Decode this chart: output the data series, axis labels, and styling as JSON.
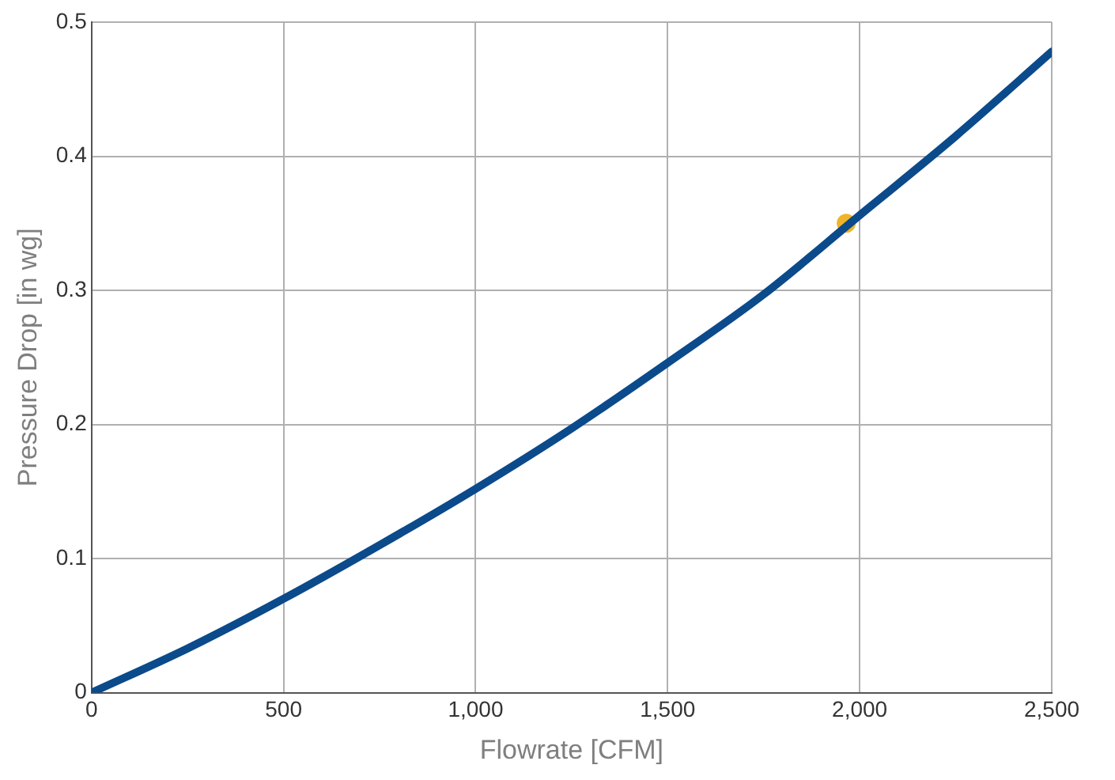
{
  "chart_data": {
    "type": "line",
    "xlabel": "Flowrate [CFM]",
    "ylabel": "Pressure Drop [in wg]",
    "xlim": [
      0,
      2500
    ],
    "xticks": [
      0,
      500,
      {
        "value": 1000,
        "label": "1,000"
      },
      {
        "value": 1500,
        "label": "1,500"
      },
      {
        "value": 2000,
        "label": "2,000"
      },
      {
        "value": 2500,
        "label": "2,500"
      }
    ],
    "ylim": [
      0,
      0.5
    ],
    "yticks": [
      0,
      0.1,
      0.2,
      0.3,
      0.4,
      0.5
    ],
    "grid": true,
    "legend": false,
    "series": [
      {
        "color": "#0b4a8b",
        "marker": "none",
        "x": [
          0,
          250,
          500,
          750,
          1000,
          1250,
          1500,
          1750,
          2000,
          2250,
          2500
        ],
        "values": [
          0,
          0.033,
          0.07,
          0.11,
          0.152,
          0.197,
          0.246,
          0.297,
          0.356,
          0.415,
          0.478
        ]
      },
      {
        "type": "scatter",
        "color": "#f0b429",
        "marker": "circle",
        "x": [
          1965
        ],
        "values": [
          0.35
        ]
      }
    ]
  }
}
